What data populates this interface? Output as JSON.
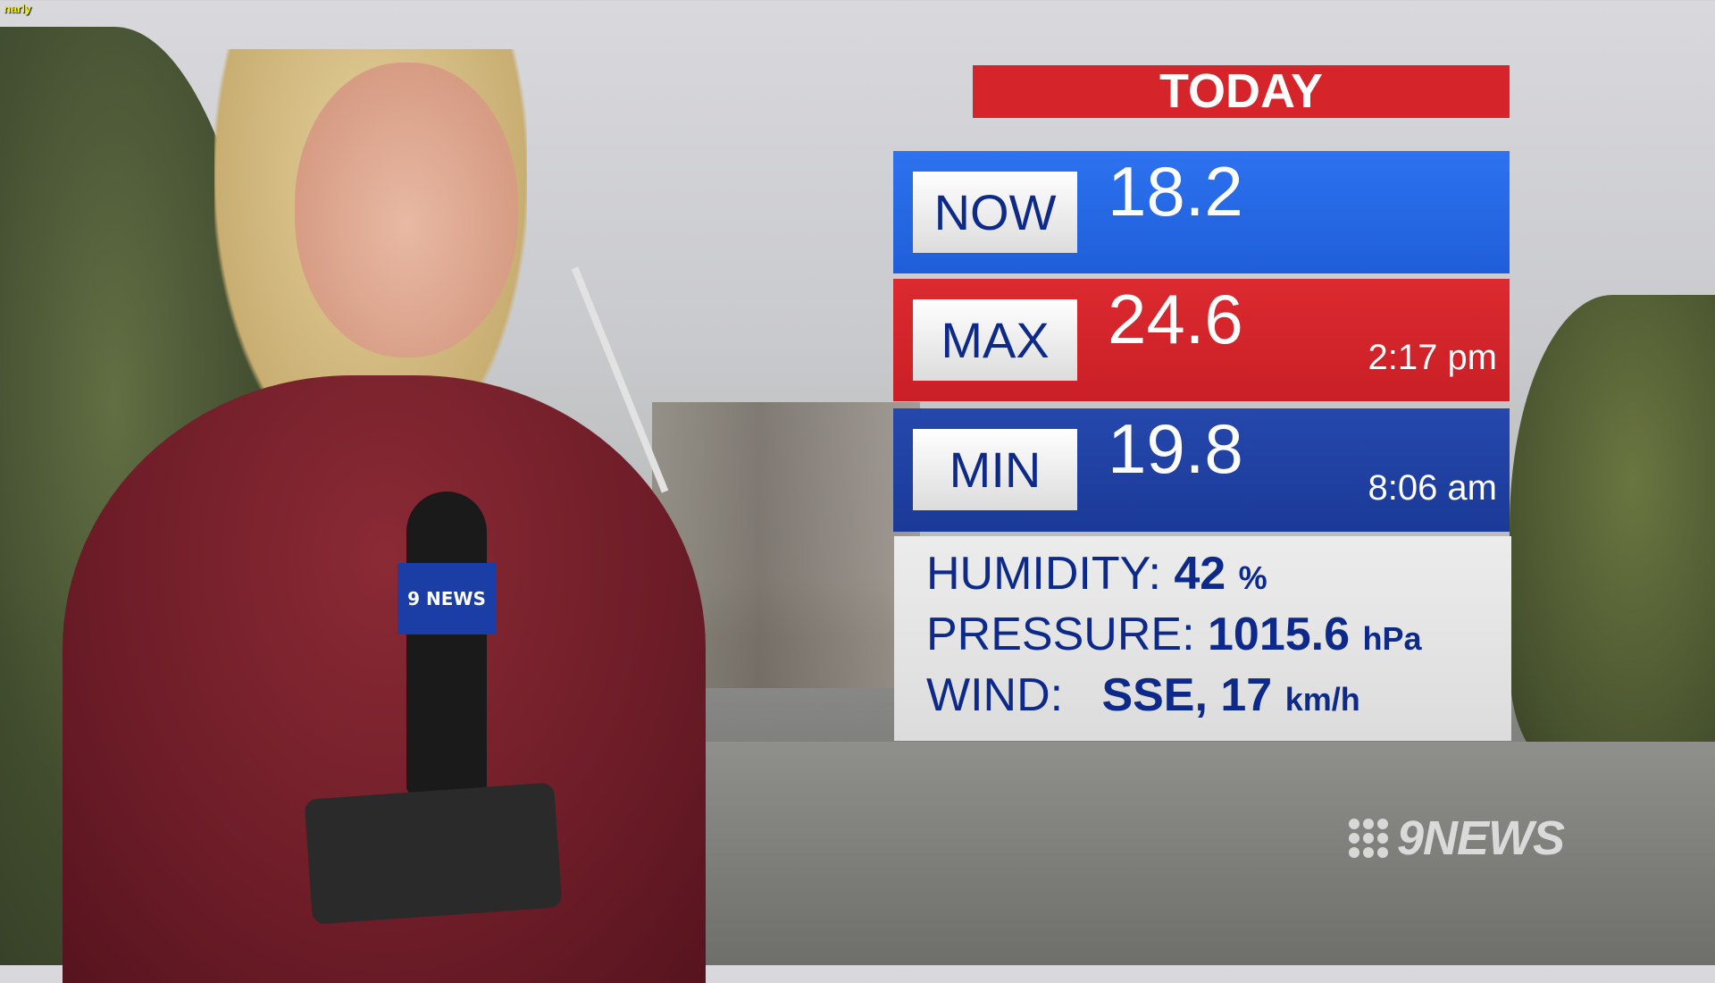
{
  "network_tag": "narly",
  "weather": {
    "title": "TODAY",
    "now": {
      "label": "NOW",
      "value": "18.2"
    },
    "max": {
      "label": "MAX",
      "value": "24.6",
      "time": "2:17 pm"
    },
    "min": {
      "label": "MIN",
      "value": "19.8",
      "time": "8:06 am"
    },
    "humidity": {
      "label": "HUMIDITY:",
      "value": "42",
      "unit": "%"
    },
    "pressure": {
      "label": "PRESSURE:",
      "value": "1015.6",
      "unit": "hPa"
    },
    "wind": {
      "label": "WIND:",
      "value": "SSE, 17",
      "unit": "km/h"
    }
  },
  "mic_flag": "9 NEWS",
  "logo": "9NEWS",
  "colors": {
    "red": "#d6242b",
    "blue": "#2d72f0",
    "dark_blue": "#1b3a98",
    "navy_text": "#0d2a8a"
  }
}
